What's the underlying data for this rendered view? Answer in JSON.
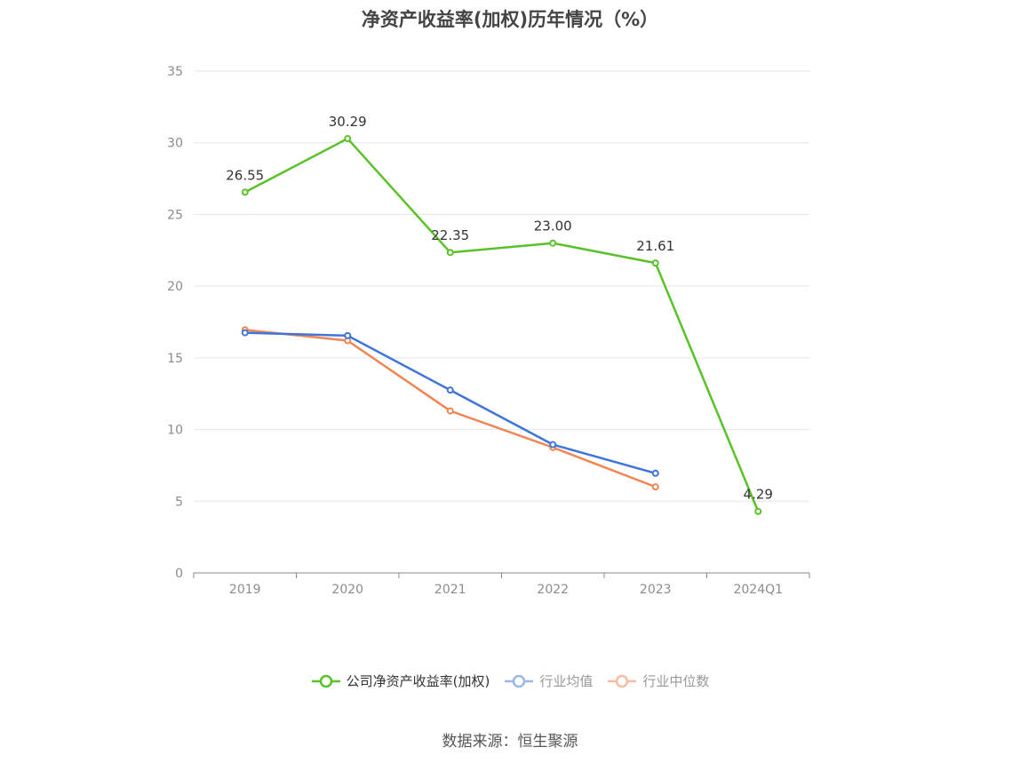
{
  "chart_data": {
    "type": "line",
    "title": "净资产收益率(加权)历年情况（%）",
    "categories": [
      "2019",
      "2020",
      "2021",
      "2022",
      "2023",
      "2024Q1"
    ],
    "ylim": [
      0,
      35
    ],
    "yticks": [
      0,
      5,
      10,
      15,
      20,
      25,
      30,
      35
    ],
    "grid": true,
    "legend_position": "bottom",
    "series": [
      {
        "name": "公司净资产收益率(加权)",
        "color": "#5ac229",
        "values": [
          26.55,
          30.29,
          22.35,
          23.0,
          21.61,
          4.29
        ],
        "labels": [
          "26.55",
          "30.29",
          "22.35",
          "23.00",
          "21.61",
          "4.29"
        ]
      },
      {
        "name": "行业均值",
        "color": "#3f74d9",
        "values": [
          16.75,
          16.55,
          12.75,
          8.95,
          6.95,
          null
        ]
      },
      {
        "name": "行业中位数",
        "color": "#f08553",
        "values": [
          16.95,
          16.2,
          11.3,
          8.75,
          6.0,
          null
        ]
      }
    ]
  },
  "source": "数据来源：恒生聚源"
}
